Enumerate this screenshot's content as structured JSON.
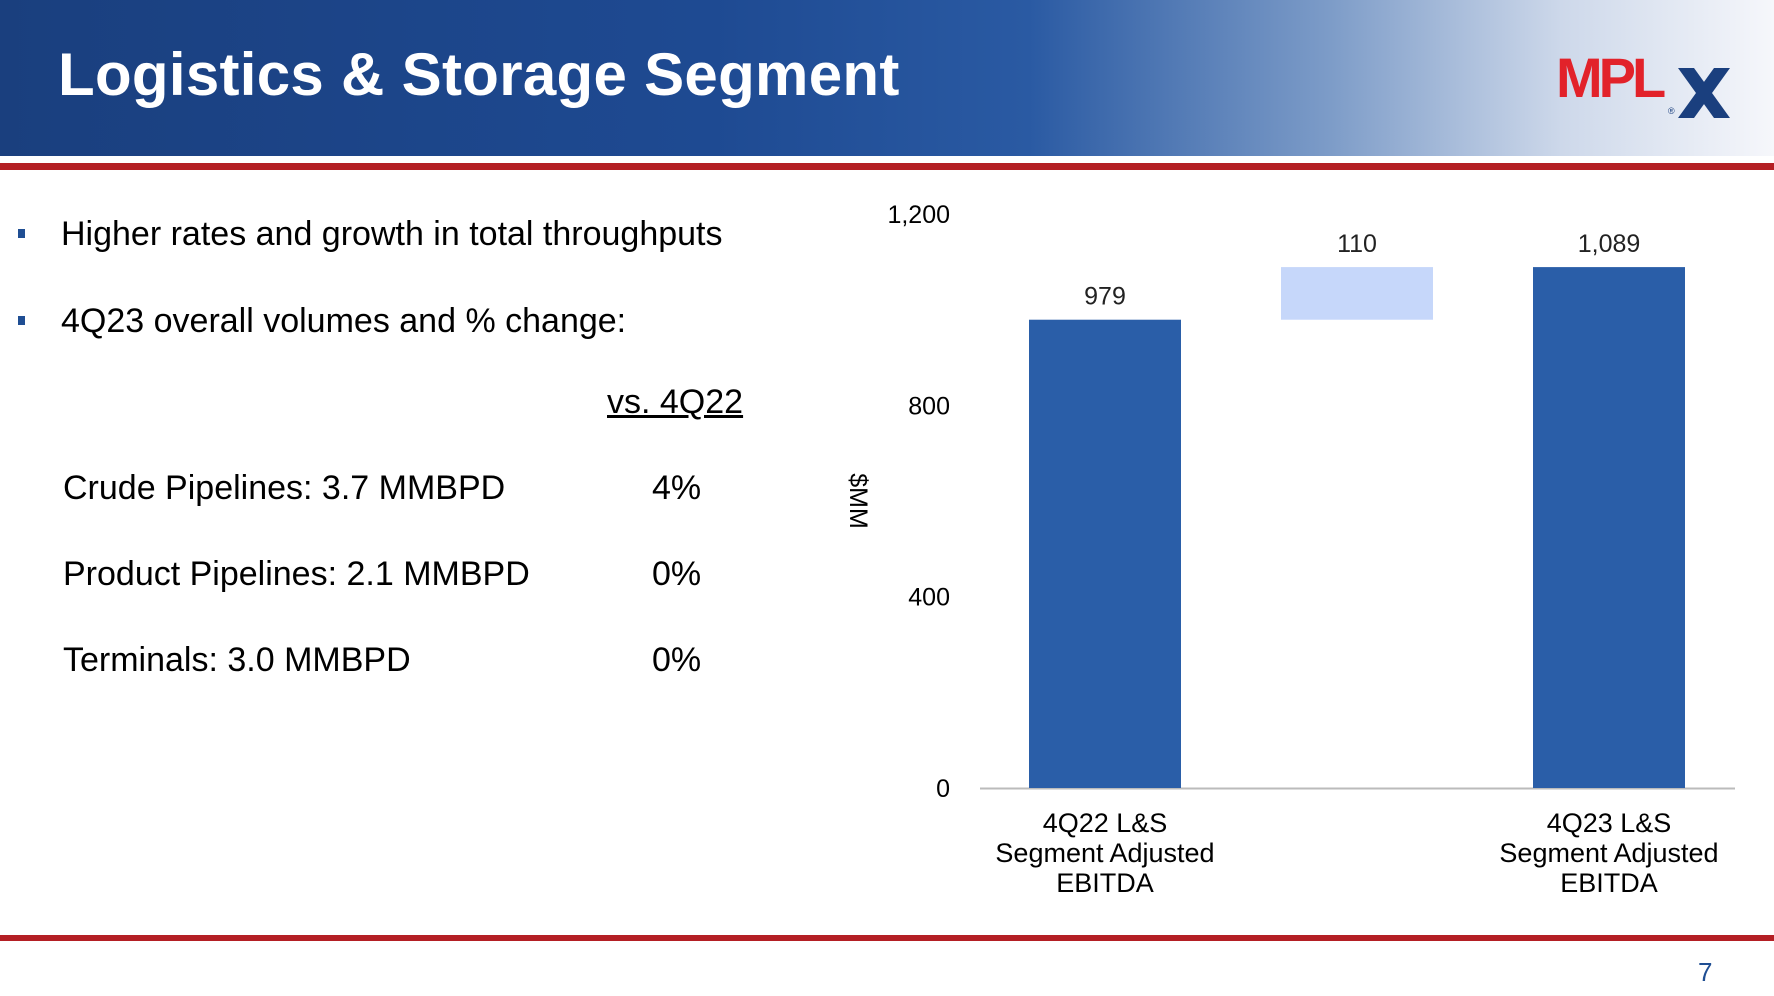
{
  "header": {
    "title": "Logistics & Storage Segment"
  },
  "logo": {
    "text": "MPL",
    "mark": "X",
    "registered": "®"
  },
  "bullets": [
    {
      "text": "Higher rates and growth in total throughputs"
    },
    {
      "text": "4Q23 overall volumes and % change:"
    }
  ],
  "volumes": {
    "column_header": "vs. 4Q22",
    "rows": [
      {
        "label": "Crude Pipelines: 3.7 MMBPD",
        "change": "4%"
      },
      {
        "label": "Product Pipelines: 2.1 MMBPD",
        "change": "0%"
      },
      {
        "label": "Terminals: 3.0 MMBPD",
        "change": "0%"
      }
    ]
  },
  "chart_data": {
    "type": "bar",
    "subtype": "waterfall",
    "ylabel": "$MM",
    "ylim": [
      0,
      1200
    ],
    "yticks": [
      0,
      400,
      800,
      1200
    ],
    "ytick_labels": [
      "0",
      "400",
      "800",
      "1,200"
    ],
    "bars": [
      {
        "label_lines": [
          "4Q22 L&S",
          "Segment Adjusted",
          "EBITDA"
        ],
        "base": 0,
        "value": 979,
        "value_label": "979",
        "kind": "total",
        "color": "#2a5ea8"
      },
      {
        "label_lines": [],
        "base": 979,
        "value": 110,
        "value_label": "110",
        "kind": "increase",
        "color": "#c6d7fa"
      },
      {
        "label_lines": [
          "4Q23 L&S",
          "Segment Adjusted",
          "EBITDA"
        ],
        "base": 0,
        "value": 1089,
        "value_label": "1,089",
        "kind": "total",
        "color": "#2a5ea8"
      }
    ],
    "grid": false
  },
  "footer": {
    "page_number": "7"
  },
  "colors": {
    "brand_blue": "#1f4e93",
    "brand_red": "#b41f24",
    "bar_total": "#2a5ea8",
    "bar_increase": "#c6d7fa"
  }
}
